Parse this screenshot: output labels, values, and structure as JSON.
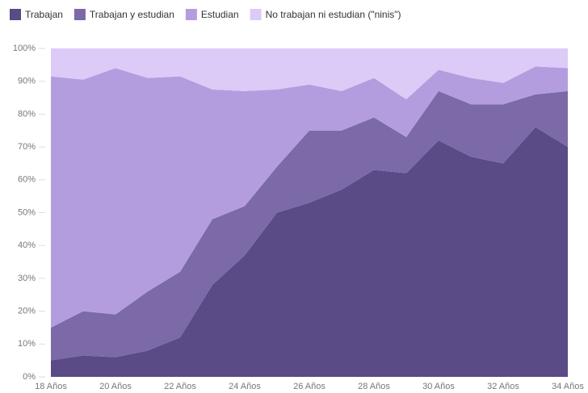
{
  "chart_data": {
    "type": "stacked_area",
    "categories": [
      "18 Años",
      null,
      "20 Años",
      null,
      "22 Años",
      null,
      "24 Años",
      null,
      "26 Años",
      null,
      "28 Años",
      null,
      "30 Años",
      null,
      "32 Años",
      null,
      "34 Años"
    ],
    "series": [
      {
        "name": "Trabajan",
        "color": "#5a4a85",
        "values": [
          5,
          6.5,
          6,
          8,
          12,
          28,
          37,
          50,
          53,
          57,
          63,
          62,
          72,
          67,
          65,
          76,
          70
        ]
      },
      {
        "name": "Trabajan y estudian",
        "color": "#7b69a8",
        "values": [
          10,
          13.5,
          13,
          18,
          20,
          20,
          15,
          14,
          22,
          18,
          16,
          11,
          15,
          16,
          18,
          10,
          17
        ]
      },
      {
        "name": "Estudian",
        "color": "#b39ddf",
        "values": [
          76.5,
          70.5,
          75,
          65,
          59.5,
          39.5,
          35,
          23.5,
          14,
          12,
          12,
          11.5,
          6.5,
          8,
          6.5,
          8.5,
          7
        ]
      },
      {
        "name": "No trabajan ni estudian (\"ninis\")",
        "color": "#dccbf7",
        "values": [
          8.5,
          9.5,
          6,
          9,
          8.5,
          12.5,
          13,
          12.5,
          11,
          13,
          9,
          15.5,
          6.5,
          9,
          10.5,
          5.5,
          6
        ]
      }
    ],
    "ylim": [
      0,
      100
    ],
    "yticks": [
      {
        "value": 0,
        "label": "0%"
      },
      {
        "value": 10,
        "label": "10%"
      },
      {
        "value": 20,
        "label": "20%"
      },
      {
        "value": 30,
        "label": "30%"
      },
      {
        "value": 40,
        "label": "40%"
      },
      {
        "value": 50,
        "label": "50%"
      },
      {
        "value": 60,
        "label": "60%"
      },
      {
        "value": 70,
        "label": "70%"
      },
      {
        "value": 80,
        "label": "80%"
      },
      {
        "value": 90,
        "label": "90%"
      },
      {
        "value": 100,
        "label": "100%"
      }
    ]
  }
}
